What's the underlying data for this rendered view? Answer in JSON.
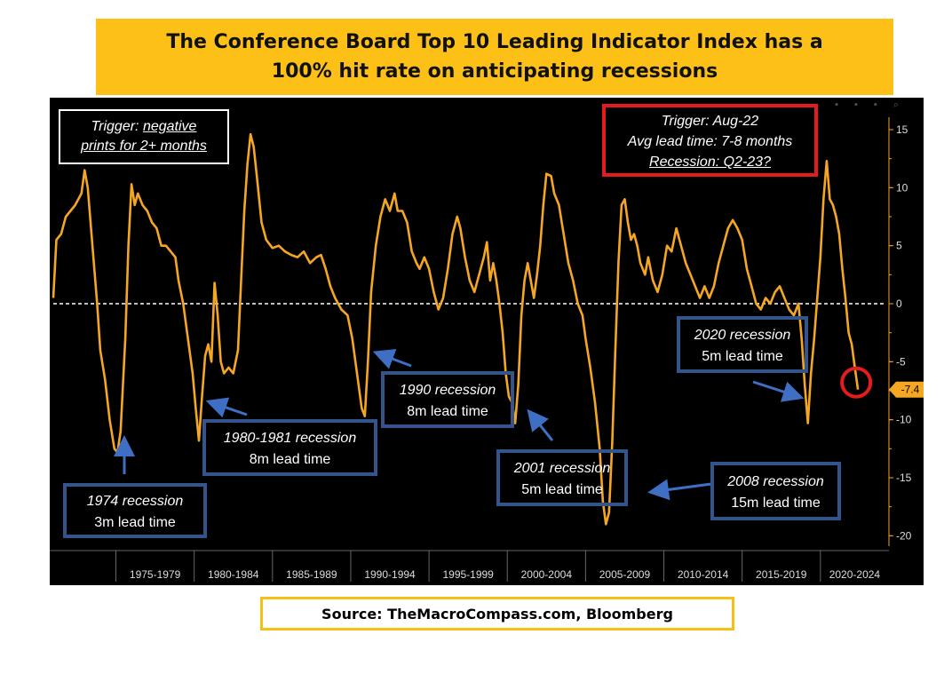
{
  "title": {
    "line1": "The Conference Board Top 10 Leading Indicator Index has a",
    "line2": "100% hit rate on anticipating recessions"
  },
  "source": "Source: TheMacroCompass.com, Bloomberg",
  "trigger_note": {
    "prefix": "Trigger: ",
    "line1_u": "negative",
    "line2_u": "prints for 2+ months"
  },
  "red_box": {
    "line1": "Trigger: Aug-22",
    "line2": "Avg lead time: 7-8 months",
    "line3": "Recession: Q2-23?"
  },
  "annotations": [
    {
      "title": "1974 recession",
      "lead": "3m lead time"
    },
    {
      "title": "1980-1981 recession",
      "lead": "8m lead time"
    },
    {
      "title": "1990 recession",
      "lead": "8m lead time"
    },
    {
      "title": "2001 recession",
      "lead": "5m lead time"
    },
    {
      "title": "2008 recession",
      "lead": "15m lead time"
    },
    {
      "title": "2020 recession",
      "lead": "5m lead time"
    }
  ],
  "colors": {
    "line": "#f5a623",
    "blue_box": "#34558b",
    "red": "#e41c1c",
    "title_bg": "#fcc016"
  },
  "chart_data": {
    "type": "line",
    "ylim": [
      -22,
      17
    ],
    "y_ticks": [
      15,
      10,
      5,
      0,
      -5,
      -10,
      -15,
      -20
    ],
    "x_range": [
      1971.0,
      2023.3
    ],
    "x_tick_labels": [
      "1975-1979",
      "1980-1984",
      "1985-1989",
      "1990-1994",
      "1995-1999",
      "2000-2004",
      "2005-2009",
      "2010-2014",
      "2015-2019",
      "2020-2024"
    ],
    "zero_line": 0,
    "last_value_label": "-7.4",
    "series": [
      {
        "values": [
          [
            1971.0,
            0.5
          ],
          [
            1971.2,
            5.5
          ],
          [
            1971.5,
            6.0
          ],
          [
            1971.8,
            7.5
          ],
          [
            1972.1,
            8.0
          ],
          [
            1972.4,
            8.5
          ],
          [
            1972.8,
            9.5
          ],
          [
            1973.0,
            11.5
          ],
          [
            1973.2,
            10.0
          ],
          [
            1973.5,
            5.0
          ],
          [
            1973.8,
            0.0
          ],
          [
            1974.0,
            -4.0
          ],
          [
            1974.3,
            -6.5
          ],
          [
            1974.6,
            -10.0
          ],
          [
            1974.9,
            -12.5
          ],
          [
            1975.1,
            -12.8
          ],
          [
            1975.3,
            -11.0
          ],
          [
            1975.6,
            -3.0
          ],
          [
            1975.8,
            5.0
          ],
          [
            1976.0,
            10.3
          ],
          [
            1976.2,
            8.5
          ],
          [
            1976.4,
            9.5
          ],
          [
            1976.7,
            8.5
          ],
          [
            1977.0,
            8.0
          ],
          [
            1977.3,
            7.0
          ],
          [
            1977.6,
            6.5
          ],
          [
            1977.9,
            5.0
          ],
          [
            1978.2,
            5.0
          ],
          [
            1978.5,
            4.5
          ],
          [
            1978.8,
            4.0
          ],
          [
            1979.0,
            2.0
          ],
          [
            1979.3,
            0.0
          ],
          [
            1979.6,
            -3.0
          ],
          [
            1979.9,
            -6.0
          ],
          [
            1980.1,
            -9.0
          ],
          [
            1980.3,
            -11.8
          ],
          [
            1980.5,
            -8.0
          ],
          [
            1980.7,
            -4.5
          ],
          [
            1980.9,
            -3.5
          ],
          [
            1981.1,
            -5.0
          ],
          [
            1981.3,
            1.8
          ],
          [
            1981.5,
            -1.0
          ],
          [
            1981.7,
            -5.0
          ],
          [
            1981.9,
            -6.0
          ],
          [
            1982.2,
            -5.5
          ],
          [
            1982.5,
            -6.0
          ],
          [
            1982.8,
            -4.0
          ],
          [
            1983.0,
            2.0
          ],
          [
            1983.2,
            8.0
          ],
          [
            1983.4,
            12.0
          ],
          [
            1983.6,
            14.6
          ],
          [
            1983.8,
            13.5
          ],
          [
            1984.0,
            11.0
          ],
          [
            1984.3,
            7.0
          ],
          [
            1984.6,
            5.5
          ],
          [
            1985.0,
            4.8
          ],
          [
            1985.4,
            5.0
          ],
          [
            1985.8,
            4.5
          ],
          [
            1986.2,
            4.2
          ],
          [
            1986.6,
            4.0
          ],
          [
            1987.0,
            4.5
          ],
          [
            1987.4,
            3.5
          ],
          [
            1987.8,
            4.0
          ],
          [
            1988.1,
            4.2
          ],
          [
            1988.4,
            3.0
          ],
          [
            1988.7,
            1.5
          ],
          [
            1989.0,
            0.5
          ],
          [
            1989.4,
            -0.5
          ],
          [
            1989.8,
            -1.0
          ],
          [
            1990.1,
            -3.0
          ],
          [
            1990.4,
            -6.0
          ],
          [
            1990.7,
            -9.0
          ],
          [
            1990.9,
            -9.7
          ],
          [
            1991.1,
            -5.0
          ],
          [
            1991.3,
            1.0
          ],
          [
            1991.6,
            5.0
          ],
          [
            1991.9,
            7.5
          ],
          [
            1992.2,
            9.0
          ],
          [
            1992.5,
            8.0
          ],
          [
            1992.8,
            9.5
          ],
          [
            1993.0,
            8.0
          ],
          [
            1993.3,
            8.0
          ],
          [
            1993.6,
            7.0
          ],
          [
            1993.9,
            4.5
          ],
          [
            1994.2,
            3.5
          ],
          [
            1994.4,
            3.0
          ],
          [
            1994.7,
            4.0
          ],
          [
            1995.0,
            3.0
          ],
          [
            1995.3,
            1.0
          ],
          [
            1995.6,
            -0.5
          ],
          [
            1995.9,
            0.5
          ],
          [
            1996.2,
            3.0
          ],
          [
            1996.5,
            6.0
          ],
          [
            1996.8,
            7.5
          ],
          [
            1997.0,
            6.5
          ],
          [
            1997.3,
            4.0
          ],
          [
            1997.6,
            2.0
          ],
          [
            1997.9,
            1.0
          ],
          [
            1998.2,
            2.5
          ],
          [
            1998.5,
            4.0
          ],
          [
            1998.7,
            5.3
          ],
          [
            1998.9,
            2.0
          ],
          [
            1999.1,
            3.5
          ],
          [
            1999.3,
            2.0
          ],
          [
            1999.5,
            0.0
          ],
          [
            1999.7,
            -2.5
          ],
          [
            1999.9,
            -6.0
          ],
          [
            2000.1,
            -8.0
          ],
          [
            2000.3,
            -8.5
          ],
          [
            2000.5,
            -10.3
          ],
          [
            2000.7,
            -7.0
          ],
          [
            2000.9,
            -1.0
          ],
          [
            2001.1,
            2.0
          ],
          [
            2001.3,
            3.5
          ],
          [
            2001.5,
            2.0
          ],
          [
            2001.7,
            0.5
          ],
          [
            2001.9,
            2.5
          ],
          [
            2002.1,
            5.0
          ],
          [
            2002.3,
            8.5
          ],
          [
            2002.5,
            11.2
          ],
          [
            2002.8,
            11.0
          ],
          [
            2003.0,
            9.5
          ],
          [
            2003.3,
            8.5
          ],
          [
            2003.6,
            6.0
          ],
          [
            2003.9,
            3.5
          ],
          [
            2004.2,
            2.0
          ],
          [
            2004.5,
            0.0
          ],
          [
            2004.8,
            -1.0
          ],
          [
            2005.0,
            -3.0
          ],
          [
            2005.3,
            -5.5
          ],
          [
            2005.6,
            -8.5
          ],
          [
            2005.9,
            -12.5
          ],
          [
            2006.1,
            -17.0
          ],
          [
            2006.3,
            -19.0
          ],
          [
            2006.5,
            -18.0
          ],
          [
            2006.7,
            -12.0
          ],
          [
            2006.9,
            -4.0
          ],
          [
            2007.1,
            3.5
          ],
          [
            2007.3,
            8.5
          ],
          [
            2007.5,
            9.0
          ],
          [
            2007.7,
            7.0
          ],
          [
            2007.9,
            5.5
          ],
          [
            2008.1,
            6.0
          ],
          [
            2008.3,
            5.0
          ],
          [
            2008.5,
            3.5
          ],
          [
            2008.8,
            2.5
          ],
          [
            2009.0,
            4.0
          ],
          [
            2009.3,
            2.0
          ],
          [
            2009.6,
            1.0
          ],
          [
            2009.9,
            2.5
          ],
          [
            2010.2,
            5.0
          ],
          [
            2010.5,
            4.5
          ],
          [
            2010.8,
            6.5
          ],
          [
            2011.1,
            5.0
          ],
          [
            2011.4,
            3.5
          ],
          [
            2011.7,
            2.5
          ],
          [
            2012.0,
            1.5
          ],
          [
            2012.3,
            0.5
          ],
          [
            2012.6,
            1.5
          ],
          [
            2012.9,
            0.5
          ],
          [
            2013.2,
            1.5
          ],
          [
            2013.5,
            3.5
          ],
          [
            2013.8,
            5.0
          ],
          [
            2014.1,
            6.5
          ],
          [
            2014.4,
            7.2
          ],
          [
            2014.7,
            6.5
          ],
          [
            2015.0,
            5.5
          ],
          [
            2015.3,
            3.0
          ],
          [
            2015.6,
            1.5
          ],
          [
            2015.9,
            0.0
          ],
          [
            2016.2,
            -0.5
          ],
          [
            2016.5,
            0.5
          ],
          [
            2016.8,
            0.0
          ],
          [
            2017.1,
            1.0
          ],
          [
            2017.4,
            1.5
          ],
          [
            2017.7,
            0.5
          ],
          [
            2018.0,
            -0.5
          ],
          [
            2018.3,
            -1.0
          ],
          [
            2018.6,
            0.0
          ],
          [
            2018.8,
            -3.0
          ],
          [
            2019.0,
            -7.0
          ],
          [
            2019.2,
            -10.3
          ],
          [
            2019.4,
            -6.0
          ],
          [
            2019.6,
            -3.0
          ],
          [
            2019.8,
            0.5
          ],
          [
            2020.0,
            4.0
          ],
          [
            2020.2,
            9.0
          ],
          [
            2020.4,
            12.3
          ],
          [
            2020.6,
            9.0
          ],
          [
            2020.8,
            8.5
          ],
          [
            2021.0,
            7.5
          ],
          [
            2021.2,
            6.0
          ],
          [
            2021.4,
            3.0
          ],
          [
            2021.6,
            0.5
          ],
          [
            2021.8,
            -2.5
          ],
          [
            2022.0,
            -3.5
          ],
          [
            2022.2,
            -5.5
          ],
          [
            2022.4,
            -7.4
          ]
        ]
      }
    ]
  }
}
